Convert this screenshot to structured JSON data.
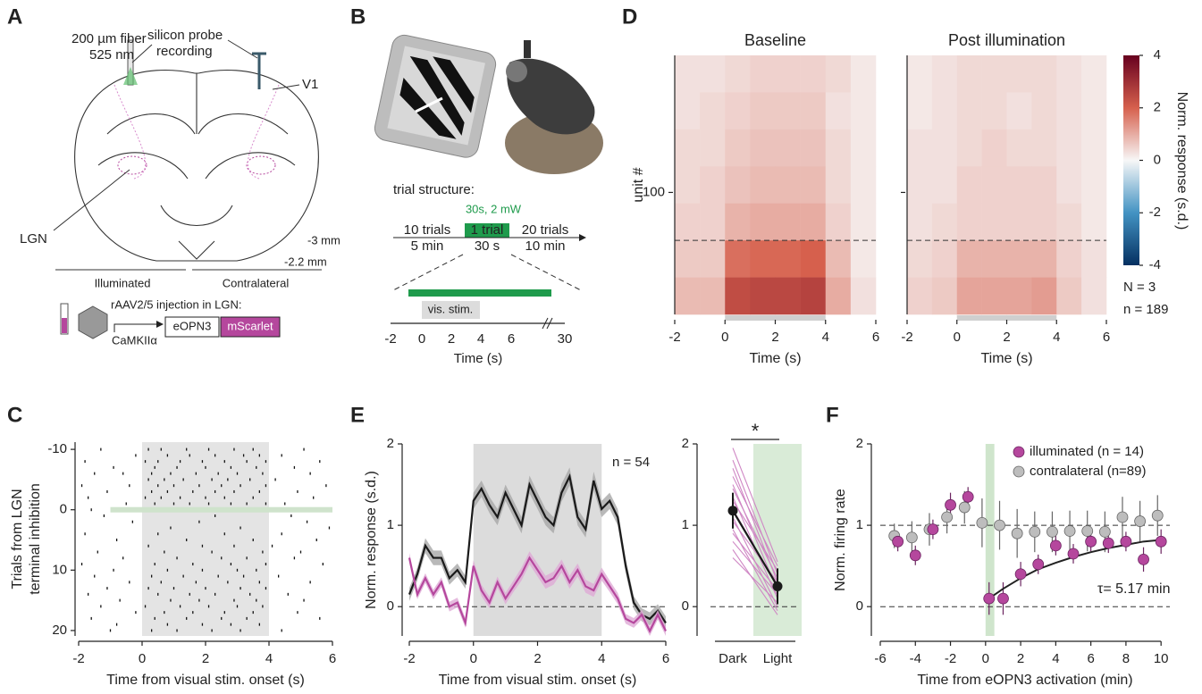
{
  "panel_labels": [
    "A",
    "B",
    "C",
    "D",
    "E",
    "F"
  ],
  "diagram_a": {
    "fiber": "200 µm fiber",
    "wavelength": "525 nm",
    "probe": [
      "silicon probe",
      "recording"
    ],
    "area": "V1",
    "target": "LGN",
    "ap_posterior": "-3 mm",
    "ap_anterior": "-2.2 mm",
    "sides": [
      "Illuminated",
      "Contralateral"
    ],
    "injection": "rAAV2/5 injection in LGN:",
    "promoter": "CaMKIIα",
    "construct": [
      "eOPN3",
      "mScarlet"
    ]
  },
  "diagram_b": {
    "heading": "trial structure:",
    "light": "30s, 2 mW",
    "blocks": [
      {
        "trials": "10 trials",
        "duration": "5 min"
      },
      {
        "trials": "1 trial",
        "duration": "30 s"
      },
      {
        "trials": "20 trials",
        "duration": "10 min"
      }
    ],
    "stim": "vis. stim.",
    "ticks": [
      "-2",
      "0",
      "2",
      "4",
      "6",
      "30"
    ],
    "xlabel": "Time (s)"
  },
  "chart_data": [
    {
      "type": "raster",
      "ylabel": [
        "Trials from LGN",
        "terminal inhibition"
      ],
      "xlabel": "Time from visual stim. onset (s)",
      "xlim": [
        -2,
        6
      ],
      "xticks": [
        -2,
        0,
        2,
        4,
        6
      ],
      "ylim": [
        20.9,
        -11.2
      ],
      "yticks": [
        -10,
        0,
        10,
        20
      ],
      "stim_span": [
        0,
        4
      ],
      "inhibition": {
        "trial": 0,
        "span": [
          -1,
          6
        ],
        "color": "#cfe3cc"
      },
      "trials": [
        -10,
        -9,
        -8,
        -7,
        -6,
        -5,
        -4,
        -3,
        -2,
        -1,
        0,
        1,
        2,
        3,
        4,
        5,
        6,
        7,
        8,
        9,
        10,
        11,
        12,
        13,
        14,
        15,
        16,
        17,
        18,
        19,
        20
      ],
      "spike_times": [
        [
          -1.3,
          0.2,
          0.6,
          1.4,
          2.1,
          2.9,
          3.5,
          5.1
        ],
        [
          -0.2,
          0.8,
          1.5,
          2.3,
          3.2,
          3.7,
          4.4
        ],
        [
          -1.8,
          0.1,
          0.5,
          1.2,
          1.9,
          2.6,
          3.3,
          3.9,
          5.6
        ],
        [
          -0.9,
          0.4,
          1.1,
          2.0,
          2.8,
          3.6,
          4.8
        ],
        [
          -1.5,
          -0.6,
          0.3,
          0.9,
          1.7,
          2.4,
          3.0,
          3.8,
          5.3
        ],
        [
          0.2,
          0.7,
          1.3,
          2.2,
          2.7,
          3.4,
          4.2
        ],
        [
          -1.9,
          -0.4,
          0.5,
          1.0,
          1.8,
          2.5,
          3.1,
          3.9,
          5.8
        ],
        [
          -1.1,
          0.3,
          0.8,
          1.6,
          2.3,
          2.9,
          3.7,
          4.9
        ],
        [
          -1.7,
          0.1,
          0.6,
          1.2,
          2.0,
          2.6,
          3.5,
          5.4
        ],
        [
          -0.5,
          0.4,
          1.0,
          1.5,
          2.1,
          2.8,
          3.3,
          3.9,
          4.5
        ],
        [
          -1.6
        ],
        [
          -1.2,
          2.3,
          4.7
        ],
        [
          -0.3,
          1.8,
          5.2
        ],
        [
          0.9,
          3.1,
          5.9
        ],
        [
          -1.8,
          0.5,
          2.6,
          4.4
        ],
        [
          -0.8,
          1.4,
          3.5,
          5.5
        ],
        [
          0.2,
          1.9,
          2.9,
          4.1
        ],
        [
          -1.4,
          0.7,
          2.2,
          3.8,
          5.0
        ],
        [
          -0.6,
          1.1,
          2.5,
          3.3,
          4.8
        ],
        [
          -1.9,
          0.4,
          1.6,
          2.8,
          3.9,
          5.7
        ],
        [
          -0.9,
          0.8,
          1.9,
          3.0,
          3.6
        ],
        [
          -1.5,
          0.3,
          1.3,
          2.4,
          3.2,
          4.3
        ],
        [
          -0.4,
          0.6,
          1.7,
          2.7,
          3.7,
          5.3
        ],
        [
          -1.1,
          0.2,
          1.0,
          2.0,
          3.1,
          3.9
        ],
        [
          -1.7,
          0.5,
          1.5,
          2.3,
          3.4,
          4.6
        ],
        [
          -0.7,
          0.9,
          1.8,
          2.9,
          3.6,
          5.1
        ],
        [
          -1.3,
          0.1,
          1.2,
          2.1,
          3.0,
          3.8
        ],
        [
          -0.2,
          0.7,
          1.6,
          2.6,
          3.5,
          4.9
        ],
        [
          -1.6,
          0.4,
          1.4,
          2.5,
          3.3,
          5.6
        ],
        [
          -0.8,
          0.8,
          1.9,
          2.8,
          3.7
        ],
        [
          -1.0,
          0.3,
          1.1,
          2.2,
          3.1,
          4.4
        ]
      ]
    },
    {
      "type": "heatmap",
      "xlabel": "Time (s)",
      "ylabel": "unit #",
      "xlim": [
        -2,
        6
      ],
      "xticks": [
        -2,
        0,
        2,
        4,
        6
      ],
      "ylim": [
        189,
        0
      ],
      "yticks": [
        100
      ],
      "row_edges": [
        0,
        27,
        54,
        81,
        108,
        135,
        162,
        189
      ],
      "col_edges": [
        -2,
        -1,
        0,
        1,
        2,
        3,
        4,
        5,
        6
      ],
      "hlines": [
        135
      ],
      "stim_span": [
        0,
        4
      ],
      "clim": [
        -4,
        4
      ],
      "cticks": [
        -4,
        -2,
        0,
        2,
        4
      ],
      "colormap": [
        "#053061",
        "#4393c3",
        "#f7f7f7",
        "#d6604d",
        "#67001f"
      ],
      "colorbar_label": "Norm. response (s.d.)",
      "notes": [
        "N = 3",
        "n = 189"
      ],
      "panels": [
        {
          "title": "Baseline",
          "color": "#222222",
          "values": [
            [
              0.3,
              0.3,
              0.4,
              0.5,
              0.5,
              0.5,
              0.4,
              0.2
            ],
            [
              0.3,
              0.4,
              0.5,
              0.6,
              0.6,
              0.6,
              0.3,
              0.2
            ],
            [
              0.4,
              0.4,
              0.6,
              0.7,
              0.7,
              0.7,
              0.4,
              0.2
            ],
            [
              0.4,
              0.5,
              0.7,
              0.8,
              0.8,
              0.8,
              0.4,
              0.2
            ],
            [
              0.5,
              0.5,
              0.9,
              1.0,
              1.0,
              1.0,
              0.5,
              0.2
            ],
            [
              0.6,
              0.6,
              1.8,
              1.9,
              1.9,
              2.0,
              0.8,
              0.2
            ],
            [
              0.8,
              0.8,
              2.4,
              2.5,
              2.5,
              2.6,
              1.0,
              0.3
            ]
          ]
        },
        {
          "title": "Post illumination",
          "color": "#b5479d",
          "values": [
            [
              0.2,
              0.3,
              0.4,
              0.4,
              0.4,
              0.4,
              0.3,
              0.2
            ],
            [
              0.2,
              0.3,
              0.4,
              0.4,
              0.3,
              0.4,
              0.3,
              0.2
            ],
            [
              0.3,
              0.3,
              0.4,
              0.5,
              0.4,
              0.4,
              0.3,
              0.2
            ],
            [
              0.3,
              0.3,
              0.5,
              0.5,
              0.5,
              0.5,
              0.3,
              0.2
            ],
            [
              0.3,
              0.4,
              0.5,
              0.5,
              0.5,
              0.5,
              0.4,
              0.2
            ],
            [
              0.4,
              0.5,
              0.9,
              0.9,
              0.9,
              0.9,
              0.5,
              0.3
            ],
            [
              0.5,
              0.6,
              1.1,
              1.1,
              1.1,
              1.2,
              0.6,
              0.3
            ]
          ]
        }
      ]
    },
    {
      "type": "line",
      "xlabel": "Time from visual stim. onset (s)",
      "ylabel": "Norm. response (s.d.)",
      "n_label": "n = 54",
      "xlim": [
        -2,
        6
      ],
      "xticks": [
        -2,
        0,
        2,
        4,
        6
      ],
      "ylim": [
        -0.36,
        2
      ],
      "yticks": [
        0,
        1,
        2
      ],
      "hlines": [
        0
      ],
      "stim_span": [
        0,
        4
      ],
      "x": [
        -2,
        -1.75,
        -1.5,
        -1.25,
        -1,
        -0.75,
        -0.5,
        -0.25,
        0,
        0.25,
        0.5,
        0.75,
        1,
        1.25,
        1.5,
        1.75,
        2,
        2.25,
        2.5,
        2.75,
        3,
        3.25,
        3.5,
        3.75,
        4,
        4.25,
        4.5,
        4.75,
        5,
        5.25,
        5.5,
        5.75,
        6
      ],
      "series": [
        {
          "color": "#1a1a1a",
          "band_color": "#a8a8a8",
          "values": [
            0.15,
            0.4,
            0.75,
            0.6,
            0.6,
            0.35,
            0.45,
            0.3,
            1.3,
            1.45,
            1.25,
            1.1,
            1.4,
            1.2,
            1.0,
            1.5,
            1.3,
            1.1,
            1.0,
            1.4,
            1.6,
            1.1,
            0.95,
            1.55,
            1.2,
            1.3,
            1.1,
            0.5,
            0.05,
            -0.1,
            -0.15,
            -0.05,
            -0.2
          ],
          "errors": [
            0.08,
            0.08,
            0.09,
            0.09,
            0.09,
            0.08,
            0.08,
            0.08,
            0.1,
            0.1,
            0.1,
            0.1,
            0.1,
            0.1,
            0.1,
            0.11,
            0.1,
            0.1,
            0.1,
            0.11,
            0.11,
            0.1,
            0.1,
            0.11,
            0.1,
            0.1,
            0.1,
            0.09,
            0.08,
            0.08,
            0.08,
            0.08,
            0.08
          ]
        },
        {
          "color": "#b5479d",
          "band_color": "#deaad6",
          "values": [
            0.6,
            0.15,
            0.35,
            0.15,
            0.3,
            0.0,
            0.05,
            -0.2,
            0.5,
            0.2,
            0.05,
            0.3,
            0.1,
            0.25,
            0.4,
            0.6,
            0.45,
            0.3,
            0.35,
            0.5,
            0.3,
            0.45,
            0.25,
            0.2,
            0.4,
            0.25,
            0.1,
            -0.15,
            -0.2,
            -0.1,
            -0.3,
            -0.1,
            -0.3
          ],
          "errors": [
            0.06,
            0.06,
            0.06,
            0.06,
            0.06,
            0.06,
            0.06,
            0.06,
            0.07,
            0.07,
            0.07,
            0.07,
            0.07,
            0.07,
            0.08,
            0.08,
            0.08,
            0.08,
            0.08,
            0.08,
            0.08,
            0.08,
            0.08,
            0.08,
            0.08,
            0.07,
            0.07,
            0.06,
            0.06,
            0.06,
            0.06,
            0.06,
            0.06
          ]
        }
      ]
    },
    {
      "type": "paired",
      "categories": [
        "Dark",
        "Light"
      ],
      "ylim": [
        -0.36,
        2
      ],
      "yticks": [
        0,
        1,
        2
      ],
      "hlines": [
        0
      ],
      "shade_category": 1,
      "shade_color": "#d9ebd7",
      "pair_color": "#cf86c4",
      "significance": "*",
      "pairs": [
        [
          1.95,
          0.55
        ],
        [
          1.8,
          0.4
        ],
        [
          1.7,
          0.3
        ],
        [
          1.6,
          0.5
        ],
        [
          1.5,
          0.2
        ],
        [
          1.45,
          0.35
        ],
        [
          1.35,
          0.1
        ],
        [
          1.3,
          0.45
        ],
        [
          1.2,
          0.25
        ],
        [
          1.1,
          0.0
        ],
        [
          1.05,
          0.3
        ],
        [
          0.95,
          -0.05
        ],
        [
          0.9,
          0.2
        ],
        [
          0.8,
          0.15
        ],
        [
          0.7,
          -0.1
        ],
        [
          0.6,
          0.05
        ]
      ],
      "mean": {
        "color": "#1a1a1a",
        "values": [
          1.18,
          0.25
        ],
        "errors": [
          0.22,
          0.22
        ]
      }
    },
    {
      "type": "scatter",
      "xlabel": "Time from eOPN3 activation (min)",
      "ylabel": "Norm. firing rate",
      "xlim": [
        -6,
        10.5
      ],
      "xticks": [
        -6,
        -4,
        -2,
        0,
        2,
        4,
        6,
        8,
        10
      ],
      "ylim": [
        -0.36,
        2
      ],
      "yticks": [
        0,
        1,
        2
      ],
      "hlines": [
        0,
        1
      ],
      "light_span": [
        0,
        0.5
      ],
      "series": [
        {
          "name": "contralateral (n=89)",
          "color": "#bdbdbd",
          "edge": "#666666",
          "x": [
            -5.2,
            -4.2,
            -3.2,
            -2.2,
            -1.2,
            -0.2,
            0.8,
            1.8,
            2.8,
            3.8,
            4.8,
            5.8,
            6.8,
            7.8,
            8.8,
            9.8
          ],
          "values": [
            0.87,
            0.85,
            0.95,
            1.1,
            1.22,
            1.03,
            1.0,
            0.9,
            0.92,
            0.92,
            0.93,
            0.93,
            0.92,
            1.1,
            1.05,
            1.12
          ],
          "errors": [
            0.15,
            0.2,
            0.2,
            0.2,
            0.2,
            0.3,
            0.3,
            0.3,
            0.25,
            0.25,
            0.25,
            0.25,
            0.25,
            0.25,
            0.25,
            0.25
          ]
        },
        {
          "name": "illuminated (n = 14)",
          "color": "#b5479d",
          "edge": "#6b2460",
          "x": [
            -5,
            -4,
            -3,
            -2,
            -1,
            0.2,
            1,
            2,
            3,
            4,
            5,
            6,
            7,
            8,
            9,
            10
          ],
          "values": [
            0.8,
            0.63,
            0.95,
            1.25,
            1.35,
            0.1,
            0.1,
            0.4,
            0.52,
            0.75,
            0.65,
            0.8,
            0.78,
            0.8,
            0.58,
            0.8
          ],
          "errors": [
            0.12,
            0.12,
            0.12,
            0.15,
            0.12,
            0.2,
            0.2,
            0.15,
            0.12,
            0.12,
            0.12,
            0.12,
            0.12,
            0.12,
            0.15,
            0.15
          ]
        }
      ],
      "fit": {
        "label": "τ= 5.17 min",
        "x": [
          0.2,
          1,
          2,
          3,
          4,
          5,
          6,
          7,
          8,
          9,
          10
        ],
        "values": [
          0.1,
          0.22,
          0.35,
          0.46,
          0.54,
          0.61,
          0.67,
          0.72,
          0.76,
          0.8,
          0.82
        ]
      }
    }
  ]
}
